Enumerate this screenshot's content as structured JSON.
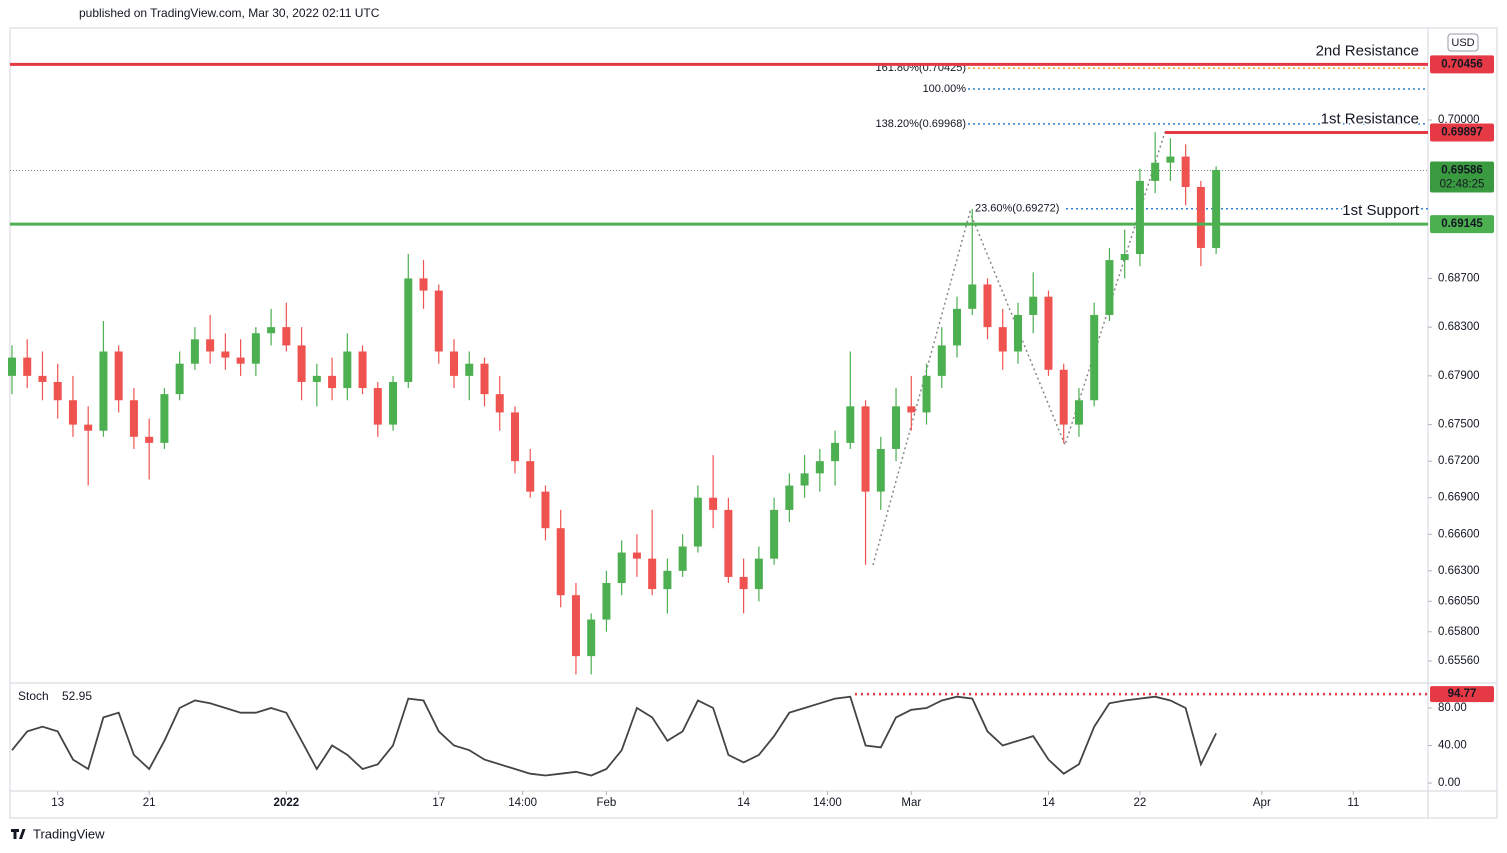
{
  "header": {
    "text": "published on TradingView.com, Mar 30, 2022 02:11 UTC",
    "currency": "USD"
  },
  "footer": {
    "brand": "TradingView"
  },
  "chart_data": {
    "type": "candlestick",
    "up_color": "#4caf50",
    "down_color": "#ef5350",
    "open": [
      0.679,
      0.6805,
      0.679,
      0.6785,
      0.677,
      0.675,
      0.6745,
      0.681,
      0.677,
      0.674,
      0.6735,
      0.6775,
      0.68,
      0.682,
      0.681,
      0.6805,
      0.68,
      0.6825,
      0.683,
      0.6815,
      0.6785,
      0.679,
      0.678,
      0.681,
      0.678,
      0.675,
      0.6785,
      0.687,
      0.686,
      0.681,
      0.679,
      0.68,
      0.6775,
      0.676,
      0.672,
      0.6695,
      0.6665,
      0.661,
      0.656,
      0.659,
      0.662,
      0.6645,
      0.664,
      0.6615,
      0.663,
      0.665,
      0.669,
      0.668,
      0.6625,
      0.6615,
      0.664,
      0.668,
      0.67,
      0.671,
      0.672,
      0.6735,
      0.6765,
      0.6695,
      0.673,
      0.6765,
      0.676,
      0.679,
      0.6815,
      0.6845,
      0.6865,
      0.683,
      0.681,
      0.684,
      0.6855,
      0.6795,
      0.675,
      0.677,
      0.684,
      0.6885,
      0.689,
      0.695,
      0.6965,
      0.697,
      0.6945,
      0.6895
    ],
    "high": [
      0.6815,
      0.682,
      0.681,
      0.68,
      0.679,
      0.6765,
      0.6835,
      0.6815,
      0.678,
      0.6755,
      0.678,
      0.681,
      0.683,
      0.684,
      0.6825,
      0.682,
      0.683,
      0.6845,
      0.685,
      0.683,
      0.68,
      0.6805,
      0.6825,
      0.6815,
      0.6785,
      0.679,
      0.689,
      0.6885,
      0.6865,
      0.682,
      0.681,
      0.6805,
      0.679,
      0.6765,
      0.673,
      0.67,
      0.668,
      0.662,
      0.6595,
      0.663,
      0.6655,
      0.666,
      0.668,
      0.664,
      0.666,
      0.67,
      0.6725,
      0.669,
      0.664,
      0.665,
      0.669,
      0.671,
      0.6725,
      0.673,
      0.6745,
      0.681,
      0.677,
      0.674,
      0.678,
      0.679,
      0.68,
      0.683,
      0.6855,
      0.6927,
      0.687,
      0.6845,
      0.685,
      0.6875,
      0.686,
      0.68,
      0.678,
      0.685,
      0.6895,
      0.691,
      0.696,
      0.699,
      0.6985,
      0.698,
      0.695,
      0.6962
    ],
    "low": [
      0.6775,
      0.678,
      0.677,
      0.6755,
      0.674,
      0.67,
      0.674,
      0.676,
      0.673,
      0.6705,
      0.673,
      0.677,
      0.6795,
      0.68,
      0.6795,
      0.679,
      0.679,
      0.6815,
      0.681,
      0.677,
      0.6765,
      0.677,
      0.677,
      0.6775,
      0.674,
      0.6745,
      0.678,
      0.6845,
      0.68,
      0.678,
      0.677,
      0.6765,
      0.6745,
      0.671,
      0.669,
      0.6655,
      0.66,
      0.6545,
      0.6545,
      0.658,
      0.661,
      0.6625,
      0.661,
      0.6595,
      0.6625,
      0.6645,
      0.6665,
      0.662,
      0.6595,
      0.6605,
      0.6635,
      0.667,
      0.669,
      0.6695,
      0.67,
      0.673,
      0.6635,
      0.668,
      0.672,
      0.6745,
      0.675,
      0.678,
      0.6805,
      0.684,
      0.682,
      0.6795,
      0.68,
      0.6825,
      0.679,
      0.6735,
      0.674,
      0.6765,
      0.6835,
      0.687,
      0.688,
      0.694,
      0.695,
      0.693,
      0.688,
      0.689
    ],
    "close": [
      0.6805,
      0.679,
      0.6785,
      0.677,
      0.675,
      0.6745,
      0.681,
      0.677,
      0.674,
      0.6735,
      0.6775,
      0.68,
      0.682,
      0.681,
      0.6805,
      0.68,
      0.6825,
      0.683,
      0.6815,
      0.6785,
      0.679,
      0.678,
      0.681,
      0.678,
      0.675,
      0.6785,
      0.687,
      0.686,
      0.681,
      0.679,
      0.68,
      0.6775,
      0.676,
      0.672,
      0.6695,
      0.6665,
      0.661,
      0.656,
      0.659,
      0.662,
      0.6645,
      0.664,
      0.6615,
      0.663,
      0.665,
      0.669,
      0.668,
      0.6625,
      0.6615,
      0.664,
      0.668,
      0.67,
      0.671,
      0.672,
      0.6735,
      0.6765,
      0.6695,
      0.673,
      0.6765,
      0.676,
      0.679,
      0.6815,
      0.6845,
      0.6865,
      0.683,
      0.681,
      0.684,
      0.6855,
      0.6795,
      0.675,
      0.677,
      0.684,
      0.6885,
      0.689,
      0.695,
      0.6965,
      0.697,
      0.6945,
      0.6895,
      0.6959
    ],
    "xlim": [
      -0.13,
      92.9
    ],
    "xticks": [
      {
        "value": 3,
        "label": "13"
      },
      {
        "value": 9,
        "label": "21"
      },
      {
        "value": 18,
        "label": "2022"
      },
      {
        "value": 28,
        "label": "17"
      },
      {
        "value": 33.5,
        "label": "14:00"
      },
      {
        "value": 39,
        "label": "Feb"
      },
      {
        "value": 48,
        "label": "14"
      },
      {
        "value": 53.5,
        "label": "14:00"
      },
      {
        "value": 59,
        "label": "Mar"
      },
      {
        "value": 68,
        "label": "14"
      },
      {
        "value": 74,
        "label": "22"
      },
      {
        "value": 82,
        "label": "Apr"
      },
      {
        "value": 88,
        "label": "11"
      }
    ],
    "ylim": [
      0.65404,
      0.70755
    ],
    "yticks": [
      {
        "value": 0.7,
        "label": "0.70000"
      },
      {
        "value": 0.687,
        "label": "0.68700"
      },
      {
        "value": 0.683,
        "label": "0.68300"
      },
      {
        "value": 0.679,
        "label": "0.67900"
      },
      {
        "value": 0.675,
        "label": "0.67500"
      },
      {
        "value": 0.672,
        "label": "0.67200"
      },
      {
        "value": 0.669,
        "label": "0.66900"
      },
      {
        "value": 0.666,
        "label": "0.66600"
      },
      {
        "value": 0.663,
        "label": "0.66300"
      },
      {
        "value": 0.6605,
        "label": "0.66050"
      },
      {
        "value": 0.658,
        "label": "0.65800"
      },
      {
        "value": 0.6556,
        "label": "0.65560"
      }
    ],
    "levels": [
      {
        "name": "2nd Resistance",
        "value": 0.70456,
        "color": "#e53945",
        "full": true
      },
      {
        "name": "1st Resistance",
        "value": 0.69897,
        "color": "#e53945",
        "full": false
      },
      {
        "name": "1st Support",
        "value": 0.69145,
        "color": "#4caf50",
        "full": true
      }
    ],
    "fib": [
      {
        "label": "161.80%(0.70425)",
        "value": 0.70425,
        "color": "#f0a030"
      },
      {
        "label": "100.00%",
        "value": 0.70254,
        "color": "#2f80d0"
      },
      {
        "label": "138.20%(0.69968)",
        "value": 0.69968,
        "color": "#2f80d0"
      },
      {
        "label": "23.60%(0.69272)",
        "value": 0.69272,
        "color": "#2f80d0"
      }
    ],
    "current": {
      "value": 0.69586,
      "countdown": "02:48:25",
      "color": "#3a9a40"
    },
    "indicator": {
      "type": "line",
      "name": "Stoch",
      "color": "#444444",
      "values": [
        35,
        55,
        60,
        55,
        25,
        15,
        70,
        75,
        30,
        15,
        45,
        80,
        88,
        85,
        80,
        75,
        75,
        80,
        75,
        45,
        15,
        40,
        30,
        15,
        20,
        40,
        90,
        88,
        55,
        40,
        35,
        25,
        20,
        15,
        10,
        8,
        10,
        12,
        8,
        15,
        35,
        80,
        70,
        45,
        55,
        88,
        80,
        30,
        22,
        30,
        50,
        75,
        80,
        85,
        90,
        92,
        40,
        38,
        70,
        78,
        80,
        88,
        92,
        90,
        55,
        40,
        45,
        50,
        25,
        10,
        20,
        60,
        85,
        88,
        90,
        92,
        88,
        80,
        20,
        52.95
      ],
      "ylim": [
        -7.4,
        103.4
      ],
      "yticks": [
        {
          "value": 80,
          "label": "80.00"
        },
        {
          "value": 40,
          "label": "40.00"
        },
        {
          "value": 0,
          "label": "0.00"
        }
      ],
      "level": {
        "value": 94.77,
        "color": "#e53945"
      }
    }
  }
}
